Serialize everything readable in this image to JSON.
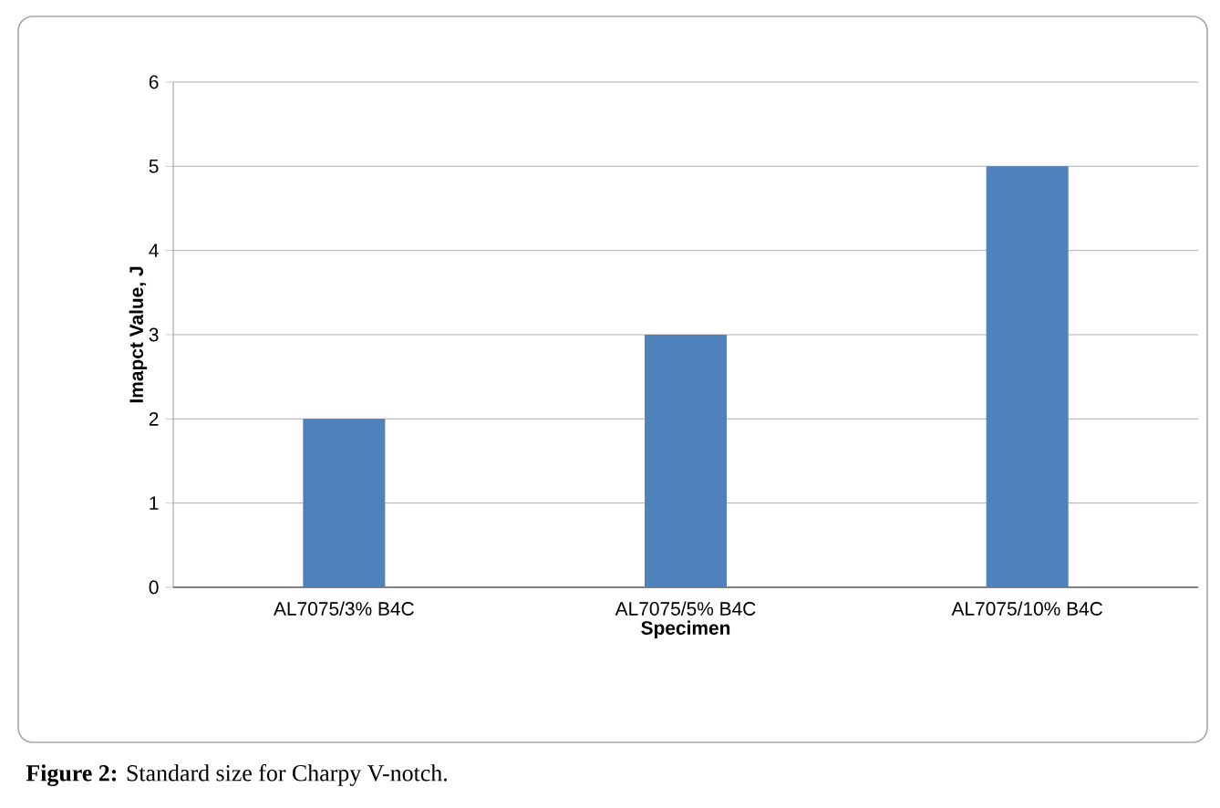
{
  "chart_data": {
    "type": "bar",
    "categories": [
      "AL7075/3% B4C",
      "AL7075/5% B4C",
      "AL7075/10% B4C"
    ],
    "values": [
      2,
      3,
      5
    ],
    "color": "#4f81bd",
    "xlabel": "Specimen",
    "ylabel": "Imapct Value, J",
    "ylim": [
      0,
      6
    ],
    "yticks": [
      0,
      1,
      2,
      3,
      4,
      5,
      6
    ],
    "grid": "y",
    "annotations": [
      "**Figure 2:** Standard size for Charpy V-notch."
    ]
  }
}
